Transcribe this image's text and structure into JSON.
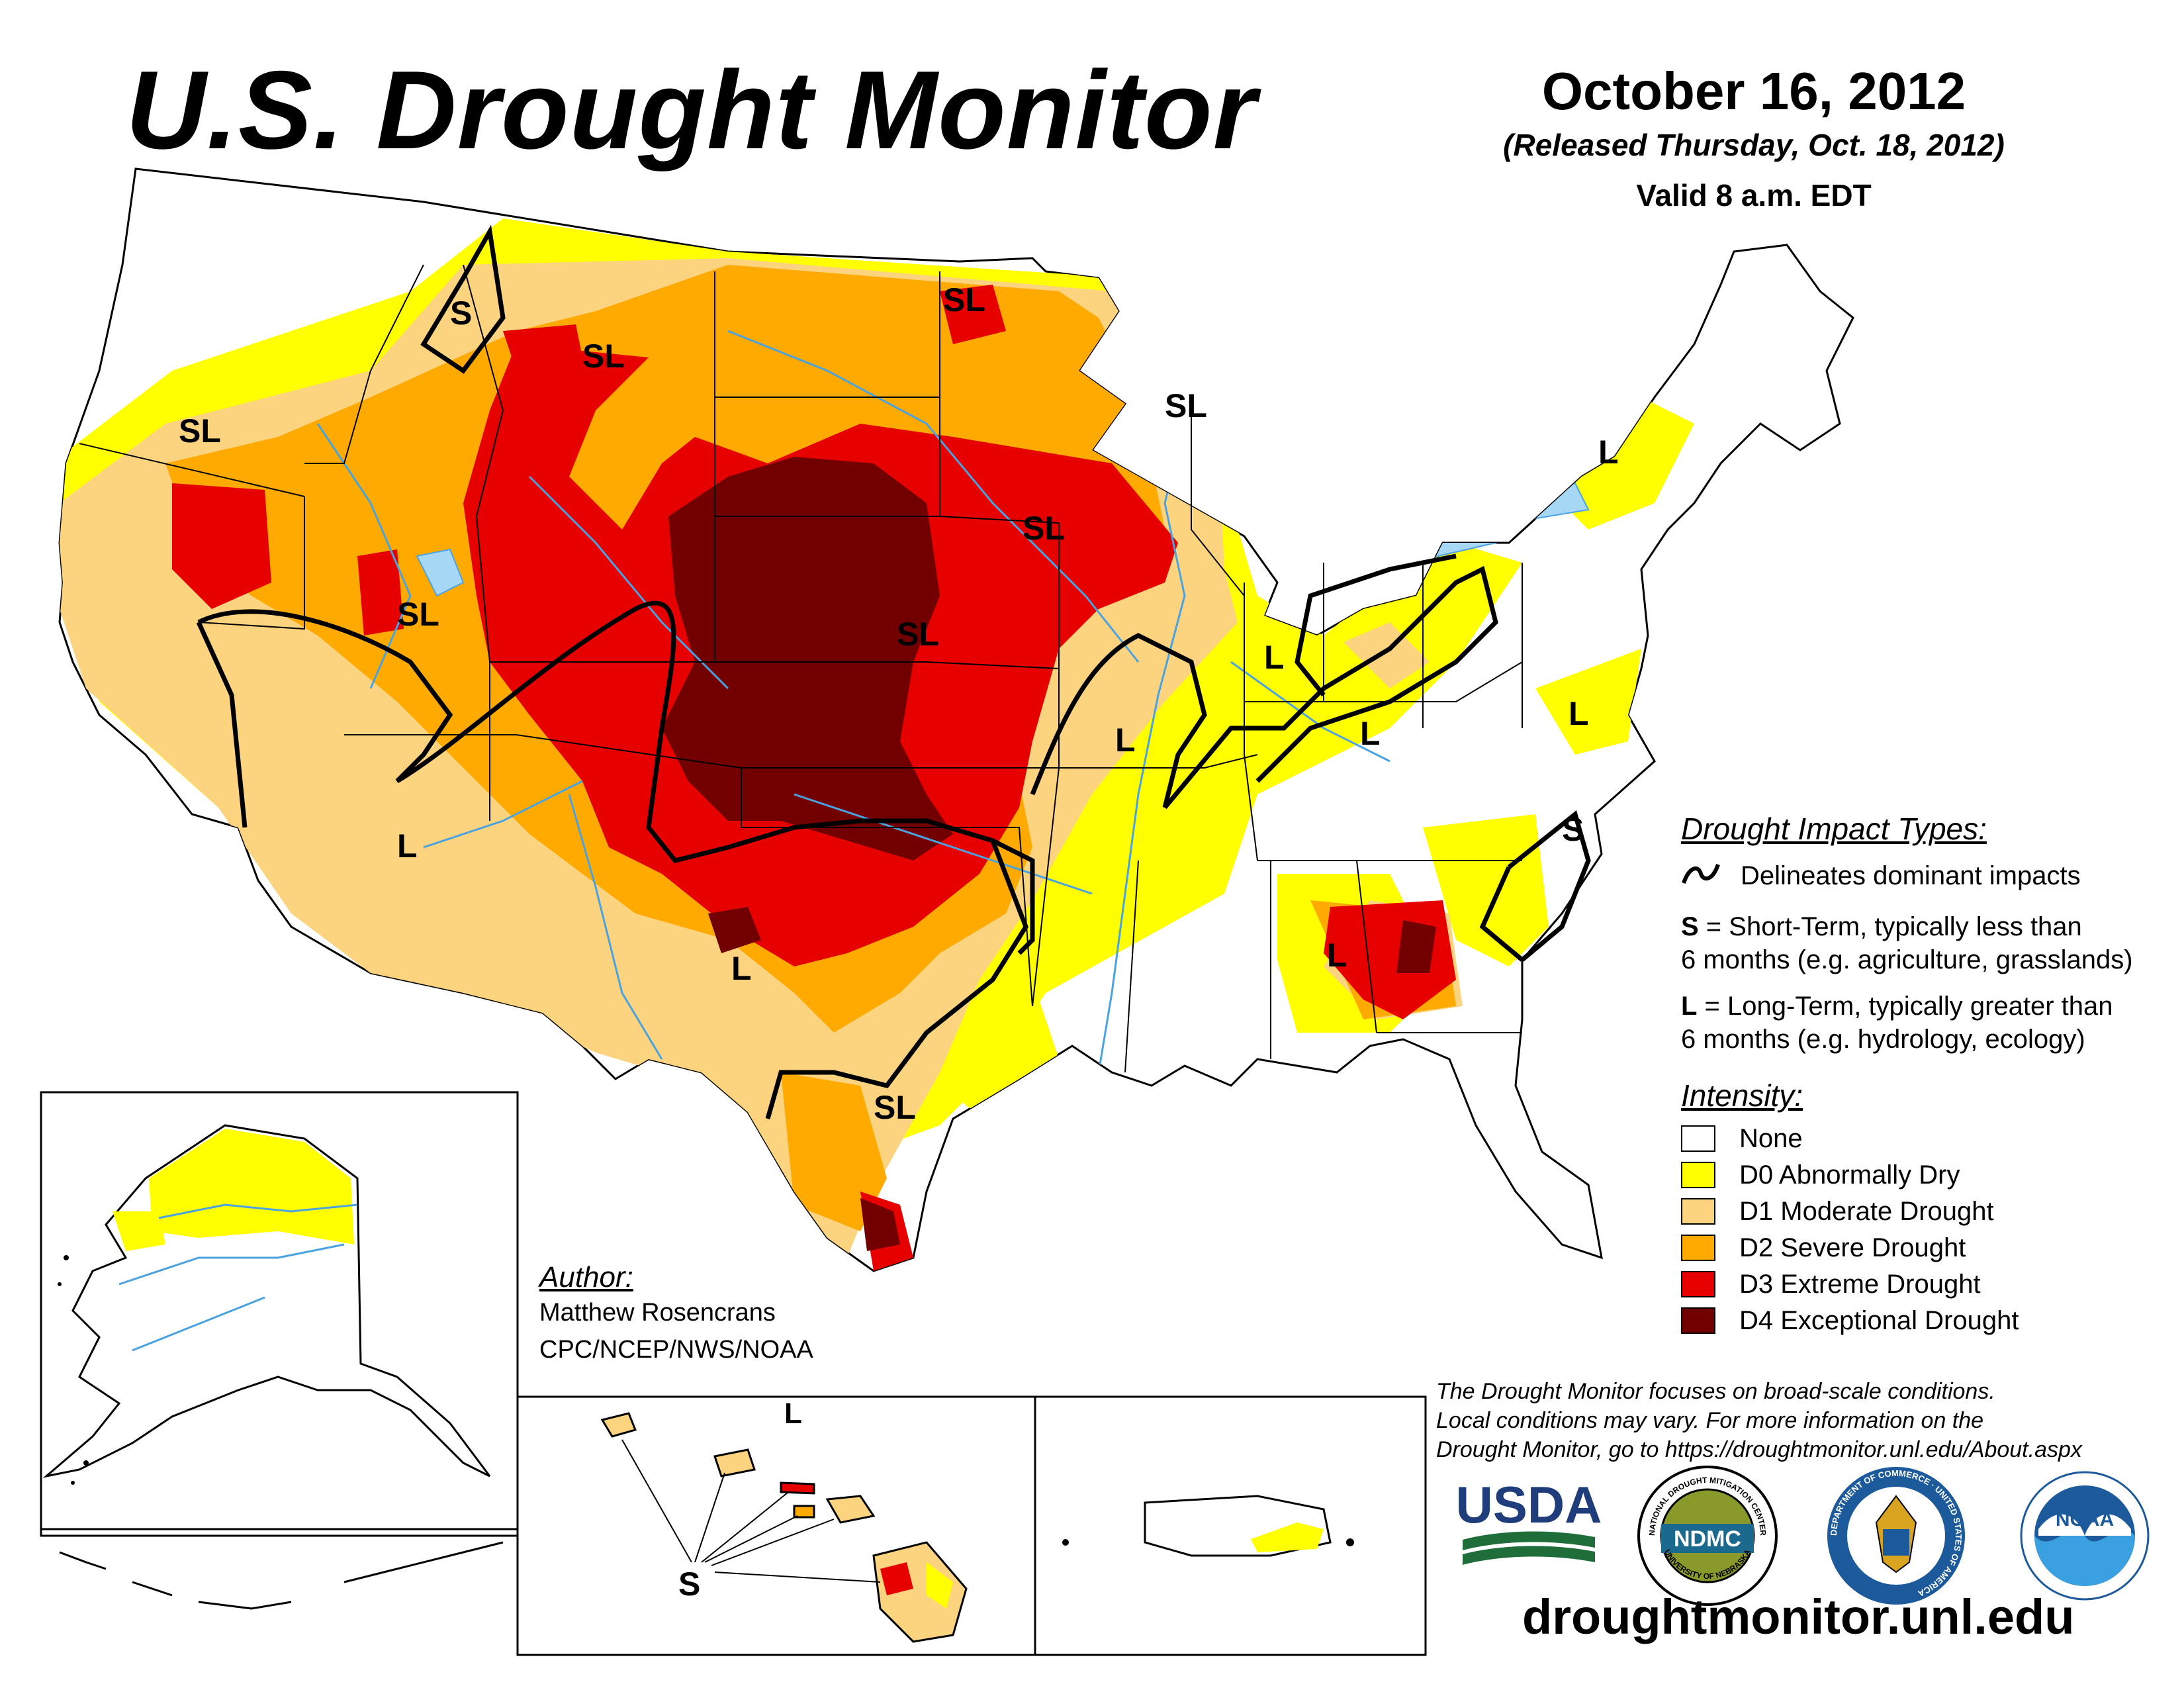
{
  "header": {
    "title": "U.S. Drought Monitor",
    "date": "October 16, 2012",
    "released": "(Released Thursday, Oct. 18, 2012)",
    "valid": "Valid 8 a.m. EDT"
  },
  "map_labels": [
    "S",
    "SL",
    "SL",
    "SL",
    "SL",
    "SL",
    "SL",
    "SL",
    "L",
    "L",
    "L",
    "L",
    "L",
    "L",
    "L",
    "S",
    "SL",
    "L",
    "L",
    "S"
  ],
  "impact_legend": {
    "heading": "Drought Impact Types:",
    "delineates": "Delineates dominant impacts",
    "short_term_key": "S",
    "short_term_line1": " = Short-Term, typically less than",
    "short_term_line2": "6 months (e.g. agriculture, grasslands)",
    "long_term_key": "L",
    "long_term_line1": " = Long-Term, typically greater than",
    "long_term_line2": "6 months (e.g. hydrology, ecology)"
  },
  "intensity_legend": {
    "heading": "Intensity:",
    "items": [
      {
        "label": "None",
        "color": "#ffffff"
      },
      {
        "label": "D0 Abnormally Dry",
        "color": "#ffff00"
      },
      {
        "label": "D1 Moderate Drought",
        "color": "#fcd37f"
      },
      {
        "label": "D2 Severe Drought",
        "color": "#ffaa00"
      },
      {
        "label": "D3 Extreme Drought",
        "color": "#e60000"
      },
      {
        "label": "D4 Exceptional Drought",
        "color": "#730000"
      }
    ]
  },
  "author": {
    "heading": "Author:",
    "name": "Matthew Rosencrans",
    "org": "CPC/NCEP/NWS/NOAA"
  },
  "disclaimer": {
    "line1": "The Drought Monitor focuses on broad-scale conditions.",
    "line2": "Local conditions may vary. For more information on the",
    "line3": "Drought Monitor, go to https://droughtmonitor.unl.edu/About.aspx"
  },
  "logos": {
    "usda": "USDA",
    "ndmc": "NDMC",
    "ndmc_ring_top": "NATIONAL DROUGHT MITIGATION CENTER",
    "ndmc_ring_bottom": "UNIVERSITY OF NEBRASKA",
    "doc_ring": "DEPARTMENT OF COMMERCE · UNITED STATES OF AMERICA",
    "noaa": "NOAA"
  },
  "website": "droughtmonitor.unl.edu",
  "colors": {
    "d0": "#ffff00",
    "d1": "#fcd37f",
    "d2": "#ffaa00",
    "d3": "#e60000",
    "d4": "#730000",
    "water": "#4aa3e0",
    "lake": "#a6d8f5"
  }
}
